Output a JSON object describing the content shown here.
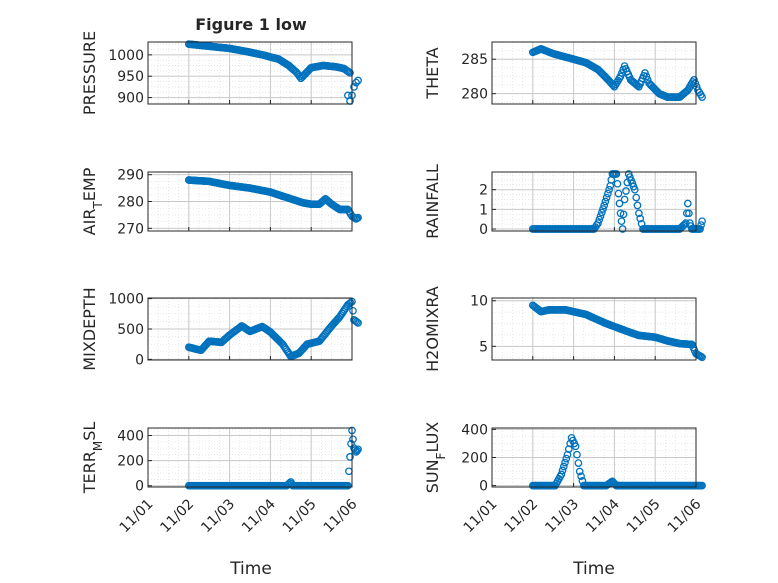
{
  "title": "Figure 1 low",
  "x_axis": {
    "label": "Time",
    "tick_labels": [
      "11/01",
      "11/02",
      "11/03",
      "11/04",
      "11/05",
      "11/06"
    ],
    "range_days": [
      0,
      5
    ]
  },
  "colors": {
    "marker": "#0072BD",
    "axis": "#262626",
    "grid": "#c8c8c8",
    "minor_grid": "#dedede"
  },
  "chart_data": [
    {
      "type": "scatter",
      "ylabel": "PRESSURE",
      "ylim": [
        885,
        1030
      ],
      "yticks": [
        900,
        950,
        1000
      ],
      "keypoints": [
        [
          1.0,
          1025
        ],
        [
          1.5,
          1020
        ],
        [
          2.0,
          1015
        ],
        [
          2.4,
          1008
        ],
        [
          2.8,
          1000
        ],
        [
          3.2,
          990
        ],
        [
          3.45,
          975
        ],
        [
          3.65,
          958
        ],
        [
          3.75,
          945
        ],
        [
          3.85,
          955
        ],
        [
          4.0,
          970
        ],
        [
          4.3,
          975
        ],
        [
          4.6,
          972
        ],
        [
          4.8,
          968
        ],
        [
          4.95,
          958
        ]
      ],
      "extra_points": [
        [
          4.9,
          905
        ],
        [
          4.95,
          892
        ],
        [
          5.0,
          905
        ],
        [
          5.05,
          925
        ],
        [
          5.1,
          935
        ],
        [
          5.15,
          940
        ]
      ]
    },
    {
      "type": "scatter",
      "ylabel": "THETA",
      "ylim": [
        278.5,
        287.5
      ],
      "yticks": [
        280,
        285
      ],
      "keypoints": [
        [
          1.0,
          286.0
        ],
        [
          1.2,
          286.5
        ],
        [
          1.5,
          285.8
        ],
        [
          2.0,
          285.0
        ],
        [
          2.3,
          284.5
        ],
        [
          2.6,
          283.5
        ],
        [
          2.85,
          282.0
        ],
        [
          3.0,
          281.0
        ],
        [
          3.15,
          282.5
        ],
        [
          3.25,
          284.0
        ],
        [
          3.4,
          282.0
        ],
        [
          3.6,
          281.0
        ],
        [
          3.75,
          283.0
        ],
        [
          3.85,
          281.5
        ],
        [
          4.1,
          280.0
        ],
        [
          4.3,
          279.5
        ],
        [
          4.6,
          279.5
        ],
        [
          4.8,
          280.5
        ],
        [
          4.95,
          282.0
        ],
        [
          5.05,
          280.5
        ],
        [
          5.15,
          279.5
        ]
      ]
    },
    {
      "type": "scatter",
      "ylabel": "AIR_TEMP",
      "ylim": [
        269,
        291
      ],
      "yticks": [
        270,
        280,
        290
      ],
      "keypoints": [
        [
          1.0,
          288.0
        ],
        [
          1.5,
          287.5
        ],
        [
          2.0,
          286.0
        ],
        [
          2.5,
          285.0
        ],
        [
          3.0,
          283.5
        ],
        [
          3.5,
          281.0
        ],
        [
          3.8,
          279.5
        ],
        [
          4.0,
          279.0
        ],
        [
          4.2,
          279.0
        ],
        [
          4.35,
          281.0
        ],
        [
          4.5,
          279.0
        ],
        [
          4.7,
          277.0
        ],
        [
          4.9,
          277.0
        ],
        [
          5.0,
          274.5
        ],
        [
          5.1,
          273.5
        ],
        [
          5.15,
          274.0
        ]
      ]
    },
    {
      "type": "scatter",
      "ylabel": "RAINFALL",
      "ylim": [
        -0.1,
        2.9
      ],
      "yticks": [
        0,
        1,
        2
      ],
      "keypoints": [
        [
          1.0,
          0
        ],
        [
          2.5,
          0
        ],
        [
          2.6,
          0.3
        ],
        [
          2.75,
          1.2
        ],
        [
          2.9,
          2.2
        ],
        [
          2.95,
          2.8
        ],
        [
          3.05,
          2.8
        ],
        [
          3.1,
          1.8
        ],
        [
          3.15,
          0.8
        ],
        [
          3.2,
          0
        ],
        [
          3.25,
          1.5
        ],
        [
          3.35,
          2.8
        ],
        [
          3.5,
          2.0
        ],
        [
          3.6,
          0.8
        ],
        [
          3.7,
          0
        ],
        [
          4.6,
          0
        ],
        [
          4.75,
          0.3
        ],
        [
          4.8,
          1.3
        ],
        [
          4.85,
          0.3
        ],
        [
          4.9,
          0
        ],
        [
          5.1,
          0
        ],
        [
          5.15,
          0.4
        ]
      ]
    },
    {
      "type": "scatter",
      "ylabel": "MIXDEPTH",
      "ylim": [
        -10,
        1010
      ],
      "yticks": [
        0,
        500,
        1000
      ],
      "keypoints": [
        [
          1.0,
          200
        ],
        [
          1.3,
          150
        ],
        [
          1.5,
          300
        ],
        [
          1.8,
          280
        ],
        [
          2.0,
          400
        ],
        [
          2.3,
          550
        ],
        [
          2.5,
          460
        ],
        [
          2.8,
          540
        ],
        [
          3.0,
          450
        ],
        [
          3.3,
          250
        ],
        [
          3.5,
          50
        ],
        [
          3.7,
          100
        ],
        [
          3.9,
          250
        ],
        [
          4.2,
          300
        ],
        [
          4.5,
          550
        ],
        [
          4.7,
          700
        ],
        [
          4.9,
          900
        ],
        [
          5.0,
          950
        ],
        [
          5.05,
          650
        ],
        [
          5.15,
          600
        ]
      ]
    },
    {
      "type": "scatter",
      "ylabel": "H2OMIXRA",
      "ylim": [
        3.5,
        10.3
      ],
      "yticks": [
        5,
        10
      ],
      "keypoints": [
        [
          1.0,
          9.5
        ],
        [
          1.2,
          8.8
        ],
        [
          1.4,
          9.0
        ],
        [
          1.8,
          9.0
        ],
        [
          2.3,
          8.5
        ],
        [
          2.8,
          7.5
        ],
        [
          3.1,
          7.0
        ],
        [
          3.4,
          6.5
        ],
        [
          3.6,
          6.2
        ],
        [
          4.0,
          6.0
        ],
        [
          4.3,
          5.6
        ],
        [
          4.6,
          5.3
        ],
        [
          4.9,
          5.2
        ],
        [
          5.0,
          4.2
        ],
        [
          5.15,
          3.8
        ]
      ]
    },
    {
      "type": "scatter",
      "ylabel": "TERR_MSL",
      "ylim": [
        -10,
        460
      ],
      "yticks": [
        0,
        200,
        400
      ],
      "keypoints": [
        [
          1.0,
          0
        ],
        [
          3.4,
          0
        ],
        [
          3.5,
          30
        ],
        [
          3.55,
          0
        ],
        [
          4.9,
          0
        ],
        [
          4.95,
          230
        ],
        [
          5.0,
          440
        ],
        [
          5.05,
          300
        ],
        [
          5.1,
          270
        ],
        [
          5.15,
          290
        ]
      ]
    },
    {
      "type": "scatter",
      "ylabel": "SUN_FLUX",
      "ylim": [
        -10,
        410
      ],
      "yticks": [
        0,
        200,
        400
      ],
      "keypoints": [
        [
          1.0,
          0
        ],
        [
          1.55,
          0
        ],
        [
          1.7,
          80
        ],
        [
          1.85,
          220
        ],
        [
          1.95,
          340
        ],
        [
          2.05,
          280
        ],
        [
          2.15,
          100
        ],
        [
          2.25,
          0
        ],
        [
          2.8,
          0
        ],
        [
          2.95,
          30
        ],
        [
          3.05,
          0
        ],
        [
          3.5,
          0
        ],
        [
          4.0,
          0
        ],
        [
          4.5,
          0
        ],
        [
          5.15,
          0
        ]
      ]
    }
  ]
}
